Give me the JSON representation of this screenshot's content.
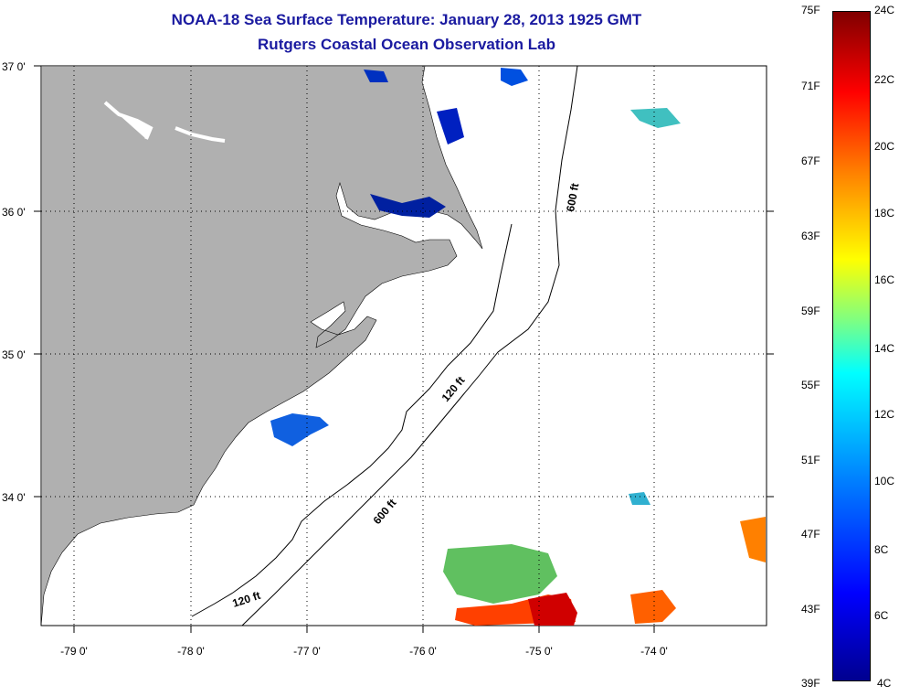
{
  "header": {
    "title": "NOAA-18 Sea Surface Temperature:  January 28, 2013 1925 GMT",
    "subtitle": "Rutgers Coastal Ocean Observation Lab"
  },
  "map": {
    "lat_labels": [
      "37 0'",
      "36 0'",
      "35 0'",
      "34 0'"
    ],
    "lon_labels": [
      "-79 0'",
      "-78 0'",
      "-77 0'",
      "-76 0'",
      "-75 0'",
      "-74 0'"
    ],
    "contour_labels": [
      "600 ft",
      "120 ft",
      "600 ft",
      "120 ft"
    ],
    "land_color": "#b0b0b0"
  },
  "colorbar": {
    "fahrenheit_labels": [
      "75F",
      "71F",
      "67F",
      "63F",
      "59F",
      "55F",
      "51F",
      "47F",
      "43F",
      "39F"
    ],
    "celsius_labels": [
      "24C",
      "22C",
      "20C",
      "18C",
      "16C",
      "14C",
      "12C",
      "10C",
      "8C",
      "6C",
      "4C"
    ]
  }
}
